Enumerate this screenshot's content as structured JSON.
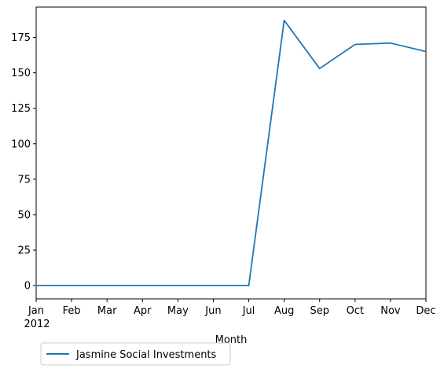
{
  "chart_data": {
    "type": "line",
    "title": "",
    "xlabel": "Month",
    "ylabel": "",
    "categories": [
      "Jan",
      "Feb",
      "Mar",
      "Apr",
      "May",
      "Jun",
      "Jul",
      "Aug",
      "Sep",
      "Oct",
      "Nov",
      "Dec"
    ],
    "year_label": "2012",
    "series": [
      {
        "name": "Jasmine Social Investments",
        "color": "#1f77b4",
        "values": [
          0,
          0,
          0,
          0,
          0,
          0,
          0,
          187,
          153,
          170,
          171,
          165
        ]
      }
    ],
    "ylim": [
      -9.35,
      196.35
    ],
    "yticks": [
      0,
      25,
      50,
      75,
      100,
      125,
      150,
      175
    ],
    "grid": false,
    "legend_position": "below-left"
  }
}
